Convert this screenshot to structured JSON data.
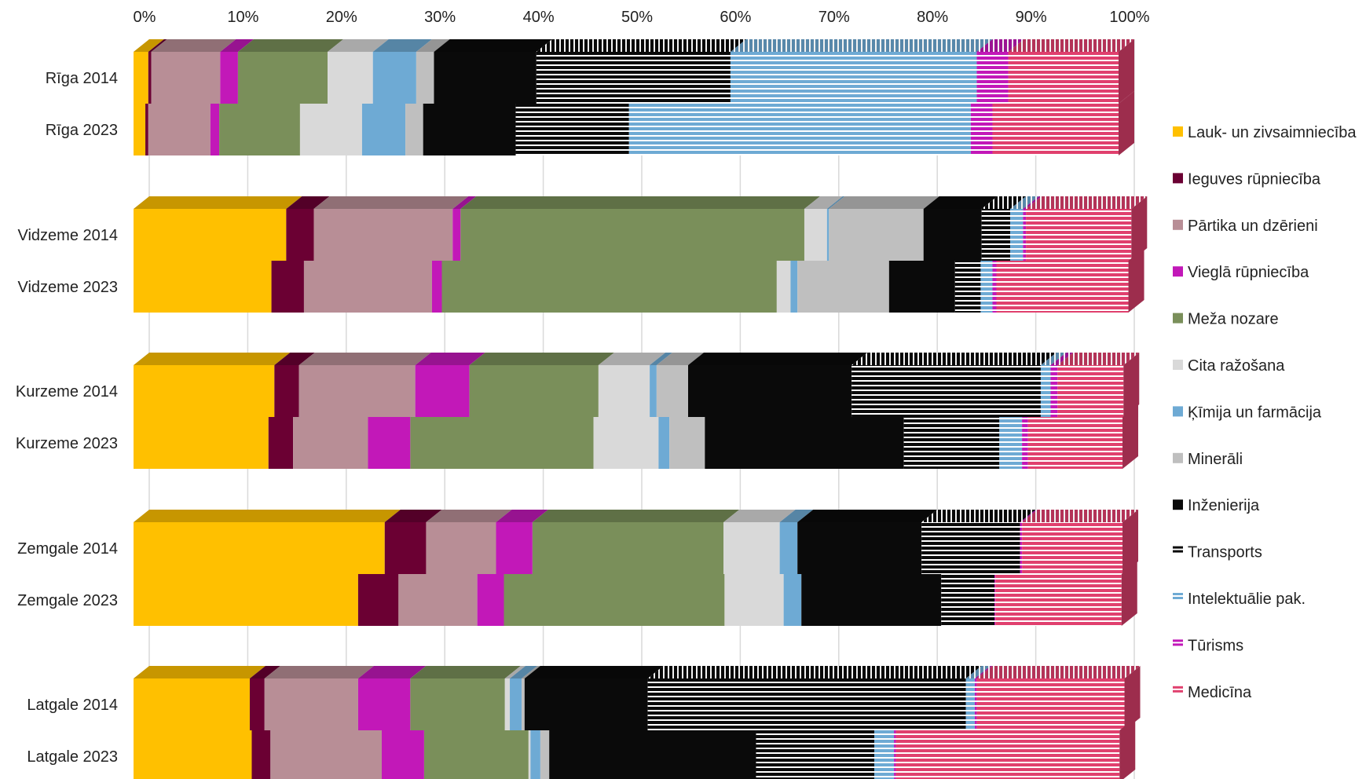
{
  "chart_data": {
    "type": "bar",
    "orientation": "horizontal",
    "stacked": "percent",
    "style": "3d",
    "xlim": [
      0,
      100
    ],
    "x_ticks": [
      "0%",
      "10%",
      "20%",
      "30%",
      "40%",
      "50%",
      "60%",
      "70%",
      "80%",
      "90%",
      "100%"
    ],
    "grid": true,
    "legend_position": "right",
    "categories": [
      "Rīga 2014",
      "Rīga 2023",
      "Vidzeme 2014",
      "Vidzeme 2023",
      "Kurzeme 2014",
      "Kurzeme 2023",
      "Zemgale 2014",
      "Zemgale 2023",
      "Latgale 2014",
      "Latgale 2023"
    ],
    "series": [
      {
        "name": "Lauk- un zivsaimniecība",
        "color": "#FFC000",
        "pattern": "solid",
        "values": [
          1.5,
          1.2,
          15.5,
          14.0,
          14.3,
          13.7,
          25.5,
          22.8,
          11.8,
          12.0
        ]
      },
      {
        "name": "Ieguves rūpniecība",
        "color": "#6B0033",
        "pattern": "solid",
        "values": [
          0.3,
          0.3,
          2.8,
          3.3,
          2.5,
          2.5,
          4.2,
          4.1,
          1.5,
          1.9
        ]
      },
      {
        "name": "Pārtika un dzērieni",
        "color": "#B88E96",
        "pattern": "solid",
        "values": [
          7.0,
          6.3,
          14.1,
          13.0,
          11.8,
          7.6,
          7.1,
          8.0,
          9.5,
          11.3
        ]
      },
      {
        "name": "Vieglā rūpniecība",
        "color": "#C218B8",
        "pattern": "solid",
        "values": [
          1.8,
          0.9,
          0.8,
          1.0,
          5.5,
          4.3,
          3.7,
          2.7,
          5.3,
          4.3
        ]
      },
      {
        "name": "Meža nozare",
        "color": "#7A8F5A",
        "pattern": "solid",
        "values": [
          9.1,
          8.2,
          34.9,
          34.0,
          13.1,
          18.6,
          19.4,
          22.4,
          9.6,
          10.6
        ]
      },
      {
        "name": "Cita ražošana",
        "color": "#D9D9D9",
        "pattern": "solid",
        "values": [
          4.6,
          6.3,
          2.3,
          1.4,
          5.2,
          6.6,
          5.7,
          6.0,
          0.5,
          0.2
        ]
      },
      {
        "name": "Ķīmija un farmācija",
        "color": "#6EAAD4",
        "pattern": "solid",
        "values": [
          4.4,
          4.4,
          0.2,
          0.7,
          0.7,
          1.1,
          1.8,
          1.8,
          1.2,
          1.0
        ]
      },
      {
        "name": "Minerāli",
        "color": "#BFBFBF",
        "pattern": "solid",
        "values": [
          1.8,
          1.8,
          9.6,
          9.3,
          3.2,
          3.6,
          0.0,
          0.0,
          0.3,
          0.9
        ]
      },
      {
        "name": "Inženierija",
        "color": "#0A0A0A",
        "pattern": "solid",
        "values": [
          10.4,
          9.4,
          5.9,
          6.7,
          16.6,
          20.2,
          12.6,
          14.2,
          12.5,
          21.0
        ]
      },
      {
        "name": "Transports",
        "color": "#0A0A0A",
        "pattern": "stripe",
        "stripe": "#FFFFFF",
        "values": [
          19.7,
          11.5,
          2.9,
          2.6,
          19.2,
          9.7,
          10.0,
          5.4,
          32.3,
          12.0
        ]
      },
      {
        "name": "Intelektuālie pak.",
        "color": "#6EAAD4",
        "pattern": "stripe",
        "stripe": "#FFFFFF",
        "values": [
          25.0,
          34.7,
          1.3,
          1.2,
          1.0,
          2.3,
          0.0,
          0.0,
          0.9,
          2.0
        ]
      },
      {
        "name": "Tūrisms",
        "color": "#C218B8",
        "pattern": "stripe",
        "stripe": "#FFFFFF",
        "values": [
          3.2,
          2.2,
          0.3,
          0.4,
          0.7,
          0.6,
          0.2,
          0.1,
          0.2,
          0.2
        ]
      },
      {
        "name": "Medicīna",
        "color": "#E0406E",
        "pattern": "stripe",
        "stripe": "#FFFFFF",
        "values": [
          11.2,
          12.8,
          10.7,
          13.4,
          6.7,
          9.6,
          10.2,
          12.8,
          15.0,
          22.7
        ]
      }
    ]
  }
}
